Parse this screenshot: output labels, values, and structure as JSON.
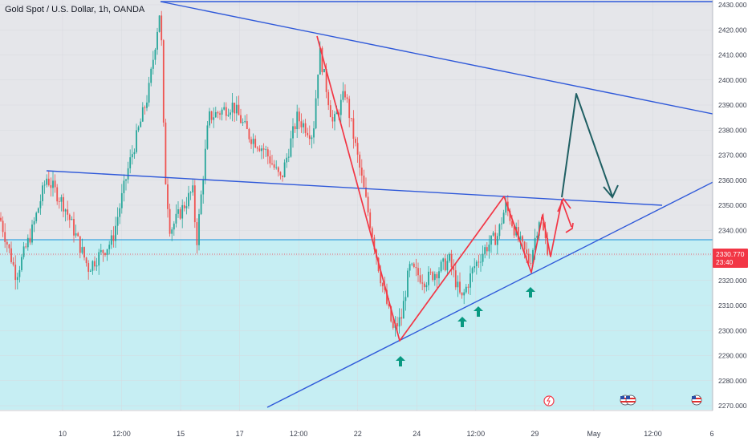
{
  "header": {
    "title": "Gold Spot / U.S. Dollar, 1h, OANDA"
  },
  "colors": {
    "up_candle": "#26a69a",
    "down_candle": "#ef5350",
    "upper_zone": "#e5e6ea",
    "lower_zone": "#c6eef3",
    "trendline": "#2f59d9",
    "support_line": "#3aa3df",
    "pattern": "#f23645",
    "projection": "#1f5f63",
    "arrows": "#089981",
    "price_tag": "#f23645"
  },
  "current_price": {
    "value": "2330.770",
    "countdown": "23:40"
  },
  "chart_data": {
    "type": "candlestick",
    "title": "Gold Spot / U.S. Dollar, 1h, OANDA",
    "y_axis": {
      "min": 2270,
      "max": 2430,
      "ticks": [
        "2430.000",
        "2420.000",
        "2410.000",
        "2400.000",
        "2390.000",
        "2380.000",
        "2370.000",
        "2360.000",
        "2350.000",
        "2340.000",
        "2330.000",
        "2320.000",
        "2310.000",
        "2300.000",
        "2290.000",
        "2280.000",
        "2270.000"
      ]
    },
    "x_axis": {
      "ticks": [
        "10",
        "12:00",
        "15",
        "17",
        "12:00",
        "22",
        "24",
        "12:00",
        "29",
        "May",
        "12:00",
        "6"
      ]
    },
    "key_prices": [
      {
        "label": "open",
        "value": 2338
      },
      {
        "label": "high",
        "value": 2431
      },
      {
        "label": "low",
        "value": 2291
      },
      {
        "label": "last",
        "value": 2330.77
      }
    ],
    "levels": {
      "horizontal_support": 2337,
      "current": 2330.77
    },
    "trendlines": [
      {
        "name": "upper-resistance",
        "from": 2431,
        "to": 2384
      },
      {
        "name": "middle-trendline",
        "from": 2364,
        "to": 2350
      },
      {
        "name": "rising-support",
        "from": 2279,
        "to": 2361
      }
    ],
    "pattern_points": [
      2418,
      2296,
      2353,
      2321,
      2346,
      2327,
      2353,
      2340
    ],
    "projection_points": [
      2352,
      2395,
      2352
    ],
    "arrows_count": 4,
    "grid": true
  }
}
